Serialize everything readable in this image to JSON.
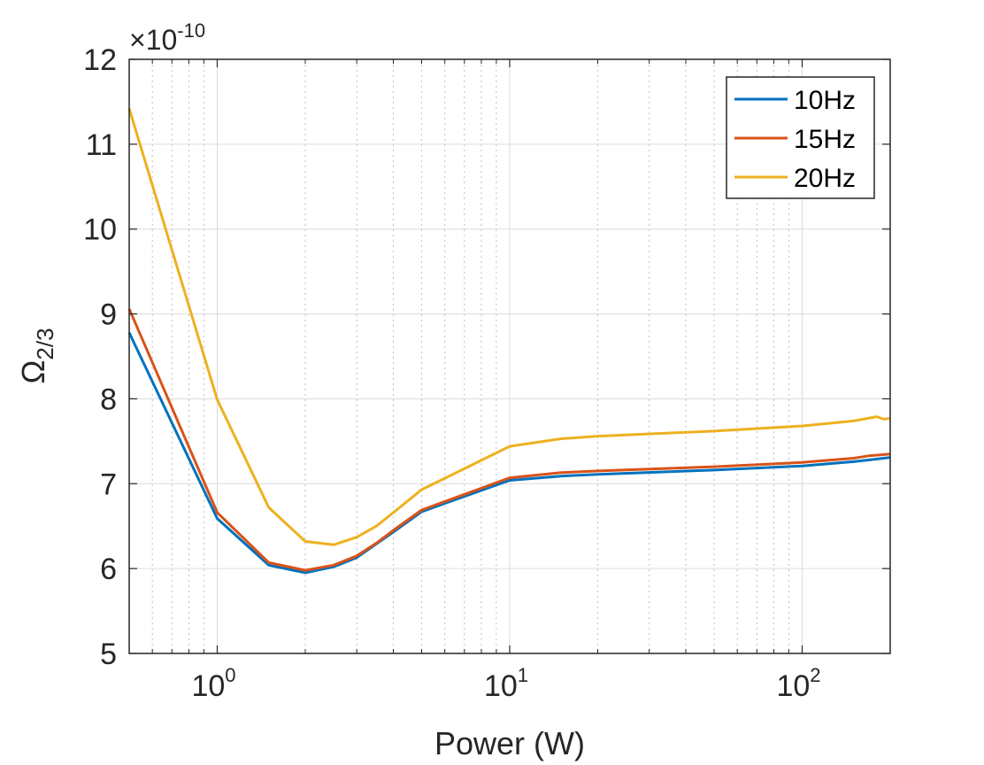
{
  "chart_data": {
    "type": "line",
    "x_scale": "log",
    "xlabel": "Power (W)",
    "ylabel_main": "Ω",
    "ylabel_sub": "2/3",
    "y_exponent_label": {
      "prefix": "×10",
      "exponent": "-10"
    },
    "xlim": [
      0.5,
      200
    ],
    "ylim": [
      5,
      12
    ],
    "yticks": [
      5,
      6,
      7,
      8,
      9,
      10,
      11,
      12
    ],
    "xticks": [
      {
        "value": 1,
        "base": "10",
        "exp": "0"
      },
      {
        "value": 10,
        "base": "10",
        "exp": "1"
      },
      {
        "value": 100,
        "base": "10",
        "exp": "2"
      }
    ],
    "grid": true,
    "legend_position": "top-right",
    "series": [
      {
        "name": "10Hz",
        "color": "#0072BD",
        "x": [
          0.5,
          1,
          1.5,
          2,
          2.5,
          3,
          3.5,
          4,
          5,
          10,
          15,
          20,
          50,
          100,
          150,
          170,
          200
        ],
        "y": [
          8.78,
          6.59,
          6.04,
          5.95,
          6.02,
          6.13,
          6.29,
          6.43,
          6.67,
          7.04,
          7.09,
          7.11,
          7.16,
          7.21,
          7.26,
          7.28,
          7.31
        ]
      },
      {
        "name": "15Hz",
        "color": "#D95319",
        "x": [
          0.5,
          1,
          1.5,
          2,
          2.5,
          3,
          3.5,
          4,
          5,
          10,
          15,
          20,
          50,
          100,
          150,
          170,
          200
        ],
        "y": [
          9.06,
          6.66,
          6.07,
          5.98,
          6.04,
          6.15,
          6.3,
          6.45,
          6.69,
          7.07,
          7.13,
          7.15,
          7.2,
          7.25,
          7.3,
          7.33,
          7.35
        ]
      },
      {
        "name": "20Hz",
        "color": "#EDB120",
        "x": [
          0.5,
          1,
          1.5,
          2,
          2.5,
          3,
          3.5,
          4,
          5,
          10,
          15,
          20,
          50,
          100,
          150,
          180,
          190,
          200
        ],
        "y": [
          11.42,
          7.99,
          6.72,
          6.32,
          6.28,
          6.37,
          6.5,
          6.66,
          6.93,
          7.44,
          7.53,
          7.56,
          7.62,
          7.68,
          7.74,
          7.79,
          7.76,
          7.77
        ]
      }
    ]
  }
}
